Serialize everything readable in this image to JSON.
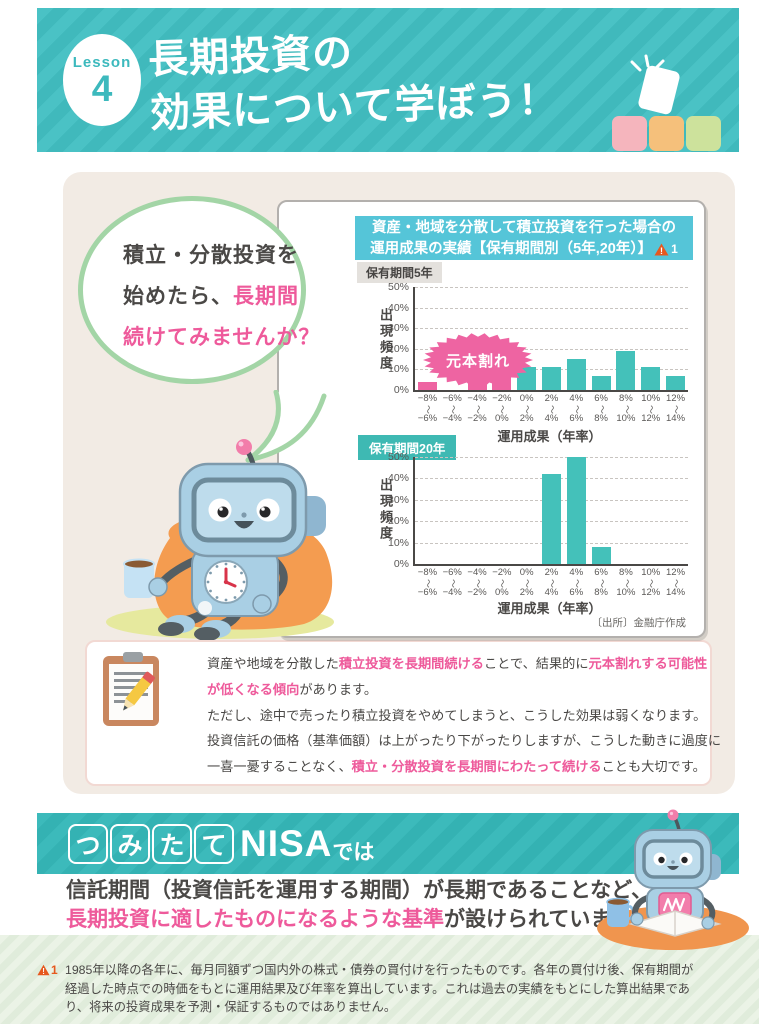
{
  "header": {
    "lesson_label": "Lesson",
    "lesson_number": "4",
    "title_line1": "長期投資の",
    "title_line2": "効果について学ぼう！"
  },
  "speech_bubble": {
    "lines": [
      [
        {
          "t": "積立・分散投資を",
          "e": false
        }
      ],
      [
        {
          "t": "始めたら、",
          "e": false
        },
        {
          "t": "長期間",
          "e": true
        }
      ],
      [
        {
          "t": "続けてみませんか？",
          "e": true
        }
      ]
    ]
  },
  "chart_panel": {
    "title_line1": "資産・地域を分散して積立投資を行った場合の",
    "title_line2": "運用成果の実績【保有期間別（5年,20年）】",
    "title_note_marker": "1",
    "source": "〔出所〕金融庁作成"
  },
  "chart_data": [
    {
      "type": "bar",
      "title": "保有期間5年",
      "ylabel": "出現頻度",
      "xlabel": "運用成果（年率）",
      "ylim": [
        0,
        50
      ],
      "yticks": [
        0,
        10,
        20,
        30,
        40,
        50
      ],
      "tick_separator": "〜",
      "categories": [
        [
          "−8%",
          "−6%"
        ],
        [
          "−6%",
          "−4%"
        ],
        [
          "−4%",
          "−2%"
        ],
        [
          "−2%",
          "0%"
        ],
        [
          "0%",
          "2%"
        ],
        [
          "2%",
          "4%"
        ],
        [
          "4%",
          "6%"
        ],
        [
          "6%",
          "8%"
        ],
        [
          "8%",
          "10%"
        ],
        [
          "10%",
          "12%"
        ],
        [
          "12%",
          "14%"
        ]
      ],
      "values": [
        4,
        0,
        4,
        11,
        11,
        11,
        15,
        7,
        19,
        11,
        7
      ],
      "bar_kinds": [
        "loss",
        "loss",
        "loss",
        "loss",
        "gain",
        "gain",
        "gain",
        "gain",
        "gain",
        "gain",
        "gain"
      ],
      "bar_palette": {
        "loss": "#ee64a2",
        "gain": "#44c1ba"
      },
      "annotation": "元本割れ",
      "grid": "dashed",
      "legend": "none"
    },
    {
      "type": "bar",
      "title": "保有期間20年",
      "ylabel": "出現頻度",
      "xlabel": "運用成果（年率）",
      "ylim": [
        0,
        50
      ],
      "yticks": [
        0,
        10,
        20,
        30,
        40,
        50
      ],
      "tick_separator": "〜",
      "categories": [
        [
          "−8%",
          "−6%"
        ],
        [
          "−6%",
          "−4%"
        ],
        [
          "−4%",
          "−2%"
        ],
        [
          "−2%",
          "0%"
        ],
        [
          "0%",
          "2%"
        ],
        [
          "2%",
          "4%"
        ],
        [
          "4%",
          "6%"
        ],
        [
          "6%",
          "8%"
        ],
        [
          "8%",
          "10%"
        ],
        [
          "10%",
          "12%"
        ],
        [
          "12%",
          "14%"
        ]
      ],
      "values": [
        0,
        0,
        0,
        0,
        0,
        42,
        50,
        8,
        0,
        0,
        0
      ],
      "bar_kinds": [
        "gain",
        "gain",
        "gain",
        "gain",
        "gain",
        "gain",
        "gain",
        "gain",
        "gain",
        "gain",
        "gain"
      ],
      "bar_palette": {
        "loss": "#ee64a2",
        "gain": "#44c1ba"
      },
      "annotation": "",
      "grid": "dashed",
      "legend": "none"
    }
  ],
  "note": {
    "lines": [
      [
        {
          "t": "資産や地域を分散した",
          "e": false
        },
        {
          "t": "積立投資を長期間続ける",
          "e": true
        },
        {
          "t": "ことで、結果的に",
          "e": false
        },
        {
          "t": "元本割れする可能性",
          "e": true
        }
      ],
      [
        {
          "t": "が低くなる傾向",
          "e": true
        },
        {
          "t": "があります。",
          "e": false
        }
      ],
      [
        {
          "t": "ただし、途中で売ったり積立投資をやめてしまうと、こうした効果は弱くなります。",
          "e": false
        }
      ],
      [
        {
          "t": "投資信託の価格（基準価額）は上がったり下がったりしますが、こうした動きに過度に",
          "e": false
        }
      ],
      [
        {
          "t": "一喜一憂することなく、",
          "e": false
        },
        {
          "t": "積立・分散投資を長期間にわたって続ける",
          "e": true
        },
        {
          "t": "ことも大切です。",
          "e": false
        }
      ]
    ]
  },
  "nisa_section": {
    "blocks": [
      "つ",
      "み",
      "た",
      "て"
    ],
    "block_colors": [
      "#f2a3a3",
      "#f2b269",
      "#bccf70",
      "#74b5e3"
    ],
    "brand": "NISA",
    "suffix": "では",
    "lines": [
      [
        {
          "t": "信託期間（投資信託を運用する期間）が長期であることなど、",
          "e": false
        }
      ],
      [
        {
          "t": "長期投資に適したものになるような基準",
          "e": true
        },
        {
          "t": "が設けられています。",
          "e": false
        }
      ]
    ]
  },
  "footnote": {
    "marker": "1",
    "text": "1985年以降の各年に、毎月同額ずつ国内外の株式・債券の買付けを行ったものです。各年の買付け後、保有期間が経過した時点での時価をもとに運用結果及び年率を算出しています。これは過去の実績をもとにした算出結果であり、将来の投資成果を予測・保証するものではありません。"
  },
  "colors": {
    "header_teal": "#45bec2",
    "panel_cream": "#f2ebe4",
    "chart_title_cyan": "#55c5d8",
    "warning_orange": "#e6581e",
    "loss_pink": "#ee64a2",
    "gain_teal": "#44c1ba",
    "emphasis_pink": "#ee5a9b",
    "label_teal": "#3eb9b3",
    "footer_green": "#e6efe0"
  }
}
